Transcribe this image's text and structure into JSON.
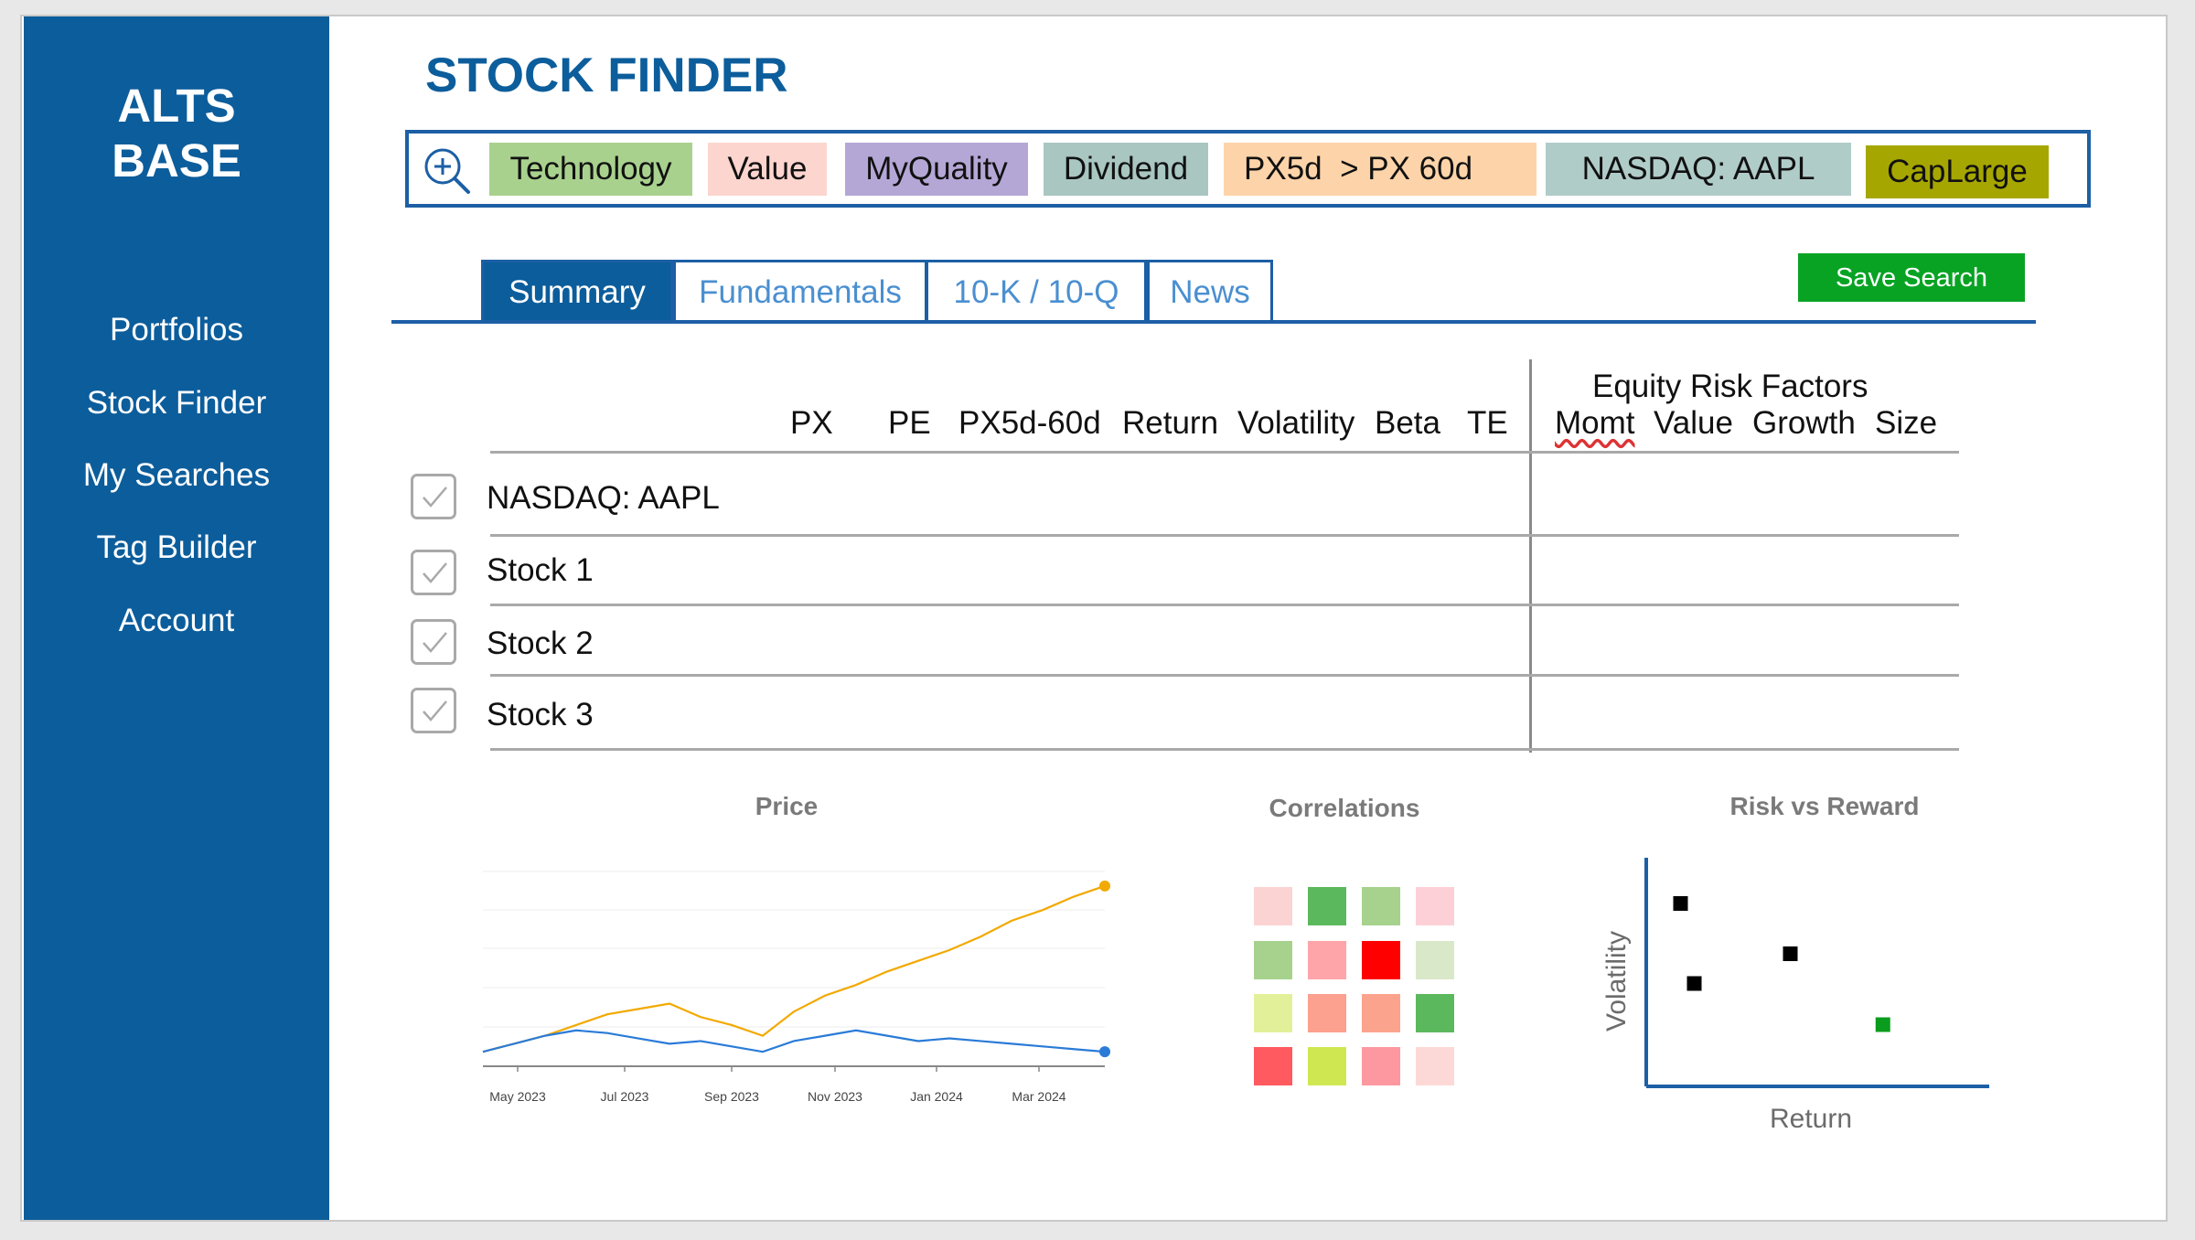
{
  "sidebar": {
    "brand": [
      "ALTS",
      "BASE"
    ],
    "items": [
      "Portfolios",
      "Stock Finder",
      "My Searches",
      "Tag Builder",
      "Account"
    ]
  },
  "title": "STOCK FINDER",
  "search": {
    "icon": "zoom-in-icon",
    "tags": [
      {
        "label": "Technology",
        "color": "#a9d18e"
      },
      {
        "label": "Value",
        "color": "#fcd5ce"
      },
      {
        "label": "MyQuality",
        "color": "#b4a7d6"
      },
      {
        "label": "Dividend",
        "color": "#a9c6c1"
      },
      {
        "label": "PX5d  > PX 60d",
        "color": "#fdd4a9"
      },
      {
        "label": "NASDAQ: AAPL",
        "color": "#b0ccc8"
      },
      {
        "label": "CapLarge",
        "color": "#a6a600"
      }
    ]
  },
  "tabs": [
    "Summary",
    "Fundamentals",
    "10-K / 10-Q",
    "News"
  ],
  "save_button": "Save Search",
  "table": {
    "columns": [
      "PX",
      "PE",
      "PX5d-60d",
      "Return",
      "Volatility",
      "Beta",
      "TE"
    ],
    "risk_factors_title": "Equity Risk Factors",
    "risk_columns": [
      "Momt",
      "Value",
      "Growth",
      "Size"
    ],
    "rows": [
      "NASDAQ: AAPL",
      "Stock 1",
      "Stock 2",
      "Stock 3"
    ]
  },
  "chart_data": [
    {
      "type": "line",
      "title": "Price",
      "x_ticks": [
        "May 2023",
        "Jul 2023",
        "Sep 2023",
        "Nov 2023",
        "Jan 2024",
        "Mar 2024"
      ],
      "series": [
        {
          "color": "#f2a900",
          "values": [
            100,
            103,
            106,
            110,
            114,
            116,
            118,
            113,
            110,
            106,
            115,
            121,
            125,
            130,
            134,
            138,
            143,
            149,
            153,
            158,
            162
          ]
        },
        {
          "color": "#2a7bd8",
          "values": [
            100,
            103,
            106,
            108,
            107,
            105,
            103,
            104,
            102,
            100,
            104,
            106,
            108,
            106,
            104,
            105,
            104,
            103,
            102,
            101,
            100
          ]
        }
      ]
    },
    {
      "type": "heatmap",
      "title": "Correlations",
      "cells": [
        [
          "#fbd3d3",
          "#5cb85c",
          "#a6d28d",
          "#fcd0d6"
        ],
        [
          "#a6d28d",
          "#fda5a9",
          "#ff0000",
          "#d9e8c9"
        ],
        [
          "#e3f09a",
          "#fca08f",
          "#fca38d",
          "#5cb85c"
        ],
        [
          "#ff5a5f",
          "#cfe852",
          "#fd98a0",
          "#fcd9d7"
        ]
      ]
    },
    {
      "type": "scatter",
      "title": "Risk vs Reward",
      "xlabel": "Return",
      "ylabel": "Volatility",
      "points": [
        {
          "x": 1.0,
          "y": 8.0,
          "color": "#000000"
        },
        {
          "x": 1.4,
          "y": 4.5,
          "color": "#000000"
        },
        {
          "x": 4.2,
          "y": 5.8,
          "color": "#000000"
        },
        {
          "x": 6.9,
          "y": 2.7,
          "color": "#0a9c1c"
        }
      ]
    }
  ]
}
